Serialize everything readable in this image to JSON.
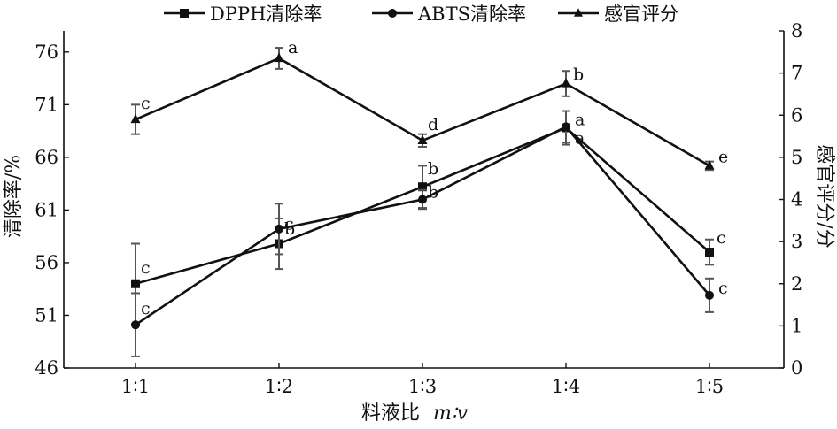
{
  "chart_data": {
    "type": "line",
    "categories": [
      "1∶1",
      "1∶2",
      "1∶3",
      "1∶4",
      "1∶5"
    ],
    "xlabel": "料液比",
    "xlabel_italic": "m∶v",
    "ylabel_left": "清除率/%",
    "ylabel_right": "感官评分/分",
    "left_axis": {
      "min": 46,
      "max": 78,
      "ticks": [
        46,
        51,
        56,
        61,
        66,
        71,
        76
      ]
    },
    "right_axis": {
      "min": 0,
      "max": 8,
      "ticks": [
        0,
        1,
        2,
        3,
        4,
        5,
        6,
        7,
        8
      ]
    },
    "legend_position": "top",
    "series": [
      {
        "name": "DPPH清除率",
        "axis": "left",
        "marker": "square",
        "values": [
          54.0,
          57.8,
          63.2,
          68.8,
          57.0
        ],
        "errors": [
          3.8,
          2.4,
          2.0,
          1.6,
          1.2
        ],
        "labels": [
          "c",
          "c",
          "b",
          "a",
          "c"
        ]
      },
      {
        "name": "ABTS清除率",
        "axis": "left",
        "marker": "circle",
        "values": [
          50.1,
          59.2,
          62.0,
          68.9,
          52.9
        ],
        "errors": [
          3.0,
          2.4,
          0.9,
          1.5,
          1.6
        ],
        "labels": [
          "c",
          "b",
          "b",
          "a",
          "c"
        ]
      },
      {
        "name": "感官评分",
        "axis": "right",
        "marker": "triangle",
        "values": [
          5.9,
          7.35,
          5.4,
          6.75,
          4.8
        ],
        "errors": [
          0.35,
          0.25,
          0.15,
          0.3,
          0.1
        ],
        "labels": [
          "c",
          "a",
          "d",
          "b",
          "e"
        ]
      }
    ]
  }
}
